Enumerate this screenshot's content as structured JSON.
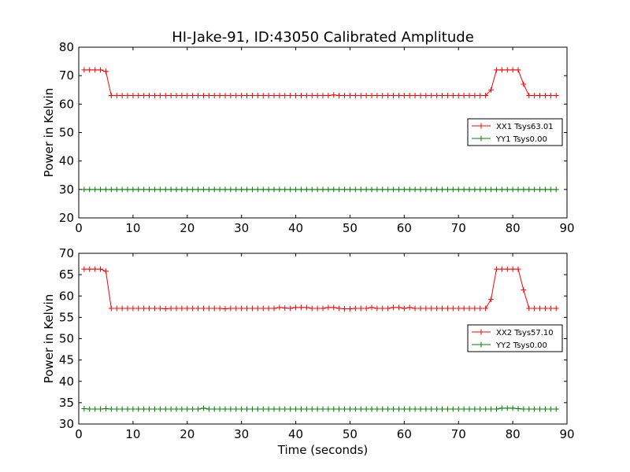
{
  "title": "HI-Jake-91, ID:43050 Calibrated Amplitude",
  "xlabel": "Time (seconds)",
  "colors": {
    "xx": "#ff0000",
    "yy": "#008000",
    "frame": "#000000"
  },
  "chart_data": [
    {
      "type": "line",
      "ylabel": "Power in Kelvin",
      "xlim": [
        0,
        90
      ],
      "ylim": [
        20,
        80
      ],
      "xticks": [
        0,
        10,
        20,
        30,
        40,
        50,
        60,
        70,
        80,
        90
      ],
      "yticks": [
        20,
        30,
        40,
        50,
        60,
        70,
        80
      ],
      "grid": false,
      "legend_position": "right",
      "series": [
        {
          "name": "XX1 Tsys63.01",
          "color": "#ff0000",
          "x": [
            1,
            2,
            3,
            4,
            5,
            6,
            7,
            8,
            9,
            10,
            11,
            12,
            13,
            14,
            15,
            16,
            17,
            18,
            19,
            20,
            21,
            22,
            23,
            24,
            25,
            26,
            27,
            28,
            29,
            30,
            31,
            32,
            33,
            34,
            35,
            36,
            37,
            38,
            39,
            40,
            41,
            42,
            43,
            44,
            45,
            46,
            47,
            48,
            49,
            50,
            51,
            52,
            53,
            54,
            55,
            56,
            57,
            58,
            59,
            60,
            61,
            62,
            63,
            64,
            65,
            66,
            67,
            68,
            69,
            70,
            71,
            72,
            73,
            74,
            75,
            76,
            77,
            78,
            79,
            80,
            81,
            82,
            83,
            84,
            85,
            86,
            87,
            88
          ],
          "y": [
            72,
            72,
            72,
            72,
            71.5,
            63,
            63,
            63,
            63,
            63,
            63,
            63,
            63,
            63,
            63,
            63,
            63,
            63,
            63,
            63,
            63,
            63,
            63,
            63,
            63,
            63,
            63,
            63,
            63,
            63,
            63,
            63,
            63,
            63,
            63,
            63,
            63,
            63,
            63,
            63,
            63,
            63,
            63,
            63,
            63,
            63,
            63.2,
            63,
            63,
            63,
            63,
            63,
            63,
            63,
            63,
            63,
            63,
            63,
            63,
            63,
            63,
            63,
            63,
            63,
            63,
            63,
            63,
            63,
            63,
            63,
            63,
            63,
            63,
            63,
            63,
            65,
            72,
            72,
            72,
            72,
            72,
            67,
            63,
            63,
            63,
            63,
            63,
            63
          ]
        },
        {
          "name": "YY1 Tsys0.00",
          "color": "#008000",
          "x": [
            1,
            2,
            3,
            4,
            5,
            6,
            7,
            8,
            9,
            10,
            11,
            12,
            13,
            14,
            15,
            16,
            17,
            18,
            19,
            20,
            21,
            22,
            23,
            24,
            25,
            26,
            27,
            28,
            29,
            30,
            31,
            32,
            33,
            34,
            35,
            36,
            37,
            38,
            39,
            40,
            41,
            42,
            43,
            44,
            45,
            46,
            47,
            48,
            49,
            50,
            51,
            52,
            53,
            54,
            55,
            56,
            57,
            58,
            59,
            60,
            61,
            62,
            63,
            64,
            65,
            66,
            67,
            68,
            69,
            70,
            71,
            72,
            73,
            74,
            75,
            76,
            77,
            78,
            79,
            80,
            81,
            82,
            83,
            84,
            85,
            86,
            87,
            88
          ],
          "y": [
            30,
            30,
            30,
            30,
            30,
            30,
            30,
            30,
            30,
            30,
            30,
            30,
            30,
            30,
            30,
            30,
            30,
            30,
            30,
            30,
            30,
            30,
            30,
            30,
            30,
            30,
            30,
            30,
            30,
            30,
            30,
            30,
            30,
            30,
            30,
            30,
            30,
            30,
            30,
            30,
            30,
            30,
            30,
            30,
            30,
            30,
            30,
            30,
            30,
            30,
            30,
            30,
            30,
            30,
            30,
            30,
            30,
            30,
            30,
            30,
            30,
            30,
            30,
            30,
            30,
            30,
            30,
            30,
            30,
            30,
            30,
            30,
            30,
            30,
            30,
            30,
            30,
            30,
            30,
            30,
            30,
            30,
            30,
            30,
            30,
            30,
            30,
            30
          ]
        }
      ]
    },
    {
      "type": "line",
      "ylabel": "Power in Kelvin",
      "xlabel": "Time (seconds)",
      "xlim": [
        0,
        90
      ],
      "ylim": [
        30,
        70
      ],
      "xticks": [
        0,
        10,
        20,
        30,
        40,
        50,
        60,
        70,
        80,
        90
      ],
      "yticks": [
        30,
        35,
        40,
        45,
        50,
        55,
        60,
        65,
        70
      ],
      "grid": false,
      "legend_position": "right",
      "series": [
        {
          "name": "XX2 Tsys57.10",
          "color": "#ff0000",
          "x": [
            1,
            2,
            3,
            4,
            5,
            6,
            7,
            8,
            9,
            10,
            11,
            12,
            13,
            14,
            15,
            16,
            17,
            18,
            19,
            20,
            21,
            22,
            23,
            24,
            25,
            26,
            27,
            28,
            29,
            30,
            31,
            32,
            33,
            34,
            35,
            36,
            37,
            38,
            39,
            40,
            41,
            42,
            43,
            44,
            45,
            46,
            47,
            48,
            49,
            50,
            51,
            52,
            53,
            54,
            55,
            56,
            57,
            58,
            59,
            60,
            61,
            62,
            63,
            64,
            65,
            66,
            67,
            68,
            69,
            70,
            71,
            72,
            73,
            74,
            75,
            76,
            77,
            78,
            79,
            80,
            81,
            82,
            83,
            84,
            85,
            86,
            87,
            88
          ],
          "y": [
            66.3,
            66.3,
            66.3,
            66.3,
            65.8,
            57.1,
            57.1,
            57.1,
            57.1,
            57.1,
            57.1,
            57.1,
            57.1,
            57.1,
            57.1,
            57.0,
            57.1,
            57.1,
            57.1,
            57.1,
            57.1,
            57.1,
            57.1,
            57.1,
            57.1,
            57.1,
            57.0,
            57.1,
            57.1,
            57.1,
            57.1,
            57.1,
            57.1,
            57.1,
            57.1,
            57.1,
            57.3,
            57.2,
            57.1,
            57.3,
            57.3,
            57.3,
            57.1,
            57.1,
            57.1,
            57.3,
            57.3,
            57.1,
            57.0,
            57.0,
            57.1,
            57.1,
            57.1,
            57.3,
            57.1,
            57.1,
            57.1,
            57.3,
            57.3,
            57.1,
            57.3,
            57.1,
            57.1,
            57.1,
            57.1,
            57.1,
            57.1,
            57.1,
            57.1,
            57.1,
            57.1,
            57.1,
            57.1,
            57.1,
            57.1,
            59.2,
            66.3,
            66.3,
            66.3,
            66.3,
            66.3,
            61.4,
            57.1,
            57.1,
            57.1,
            57.1,
            57.1,
            57.1
          ]
        },
        {
          "name": "YY2 Tsys0.00",
          "color": "#008000",
          "x": [
            1,
            2,
            3,
            4,
            5,
            6,
            7,
            8,
            9,
            10,
            11,
            12,
            13,
            14,
            15,
            16,
            17,
            18,
            19,
            20,
            21,
            22,
            23,
            24,
            25,
            26,
            27,
            28,
            29,
            30,
            31,
            32,
            33,
            34,
            35,
            36,
            37,
            38,
            39,
            40,
            41,
            42,
            43,
            44,
            45,
            46,
            47,
            48,
            49,
            50,
            51,
            52,
            53,
            54,
            55,
            56,
            57,
            58,
            59,
            60,
            61,
            62,
            63,
            64,
            65,
            66,
            67,
            68,
            69,
            70,
            71,
            72,
            73,
            74,
            75,
            76,
            77,
            78,
            79,
            80,
            81,
            82,
            83,
            84,
            85,
            86,
            87,
            88
          ],
          "y": [
            33.6,
            33.5,
            33.5,
            33.5,
            33.6,
            33.5,
            33.5,
            33.5,
            33.5,
            33.5,
            33.5,
            33.5,
            33.5,
            33.5,
            33.5,
            33.5,
            33.5,
            33.5,
            33.5,
            33.5,
            33.5,
            33.5,
            33.7,
            33.5,
            33.5,
            33.5,
            33.5,
            33.5,
            33.5,
            33.5,
            33.5,
            33.5,
            33.5,
            33.5,
            33.5,
            33.5,
            33.5,
            33.5,
            33.5,
            33.5,
            33.5,
            33.5,
            33.5,
            33.5,
            33.5,
            33.5,
            33.5,
            33.5,
            33.5,
            33.5,
            33.5,
            33.5,
            33.5,
            33.5,
            33.5,
            33.5,
            33.5,
            33.5,
            33.5,
            33.5,
            33.5,
            33.5,
            33.5,
            33.5,
            33.5,
            33.5,
            33.5,
            33.5,
            33.5,
            33.5,
            33.5,
            33.5,
            33.5,
            33.5,
            33.5,
            33.5,
            33.5,
            33.7,
            33.7,
            33.7,
            33.6,
            33.5,
            33.5,
            33.5,
            33.5,
            33.5,
            33.5,
            33.5
          ]
        }
      ]
    }
  ]
}
